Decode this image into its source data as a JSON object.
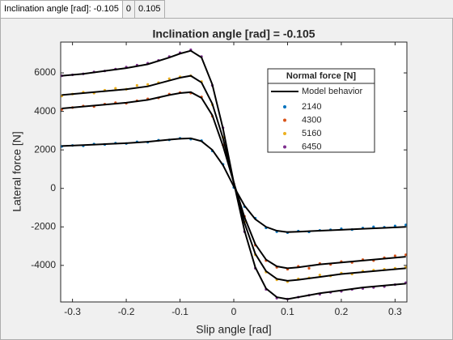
{
  "tabs": [
    "Inclination angle [rad]: -0.105",
    "0",
    "0.105"
  ],
  "chart_data": {
    "type": "scatter",
    "title": "Inclination angle [rad] = -0.105",
    "x_label": "Slip angle [rad]",
    "y_label": "Lateral force [N]",
    "legend_title": "Normal force [N]",
    "xlim": [
      -0.322,
      0.322
    ],
    "ylim": [
      -5900,
      7600
    ],
    "xticks": [
      -0.3,
      -0.2,
      -0.1,
      0,
      0.1,
      0.2,
      0.3
    ],
    "yticks": [
      -4000,
      -2000,
      0,
      2000,
      4000,
      6000
    ],
    "x": [
      -0.32,
      -0.3,
      -0.28,
      -0.26,
      -0.24,
      -0.22,
      -0.2,
      -0.18,
      -0.16,
      -0.14,
      -0.12,
      -0.1,
      -0.08,
      -0.06,
      -0.04,
      -0.02,
      0,
      0.02,
      0.04,
      0.06,
      0.08,
      0.1,
      0.12,
      0.14,
      0.16,
      0.18,
      0.2,
      0.22,
      0.24,
      0.26,
      0.28,
      0.3,
      0.32
    ],
    "series": [
      {
        "name": "2140",
        "color": "#0072BD",
        "values": [
          2180,
          2230,
          2210,
          2300,
          2280,
          2350,
          2330,
          2420,
          2400,
          2500,
          2520,
          2600,
          2560,
          2480,
          1950,
          1250,
          50,
          -950,
          -1550,
          -2050,
          -2250,
          -2300,
          -2220,
          -2260,
          -2180,
          -2150,
          -2100,
          -2140,
          -2060,
          -2000,
          -2020,
          -1950,
          -1900
        ]
      },
      {
        "name": "4300",
        "color": "#D95319",
        "values": [
          4100,
          4200,
          4280,
          4250,
          4380,
          4450,
          4420,
          4550,
          4650,
          4700,
          4900,
          4980,
          4950,
          4750,
          3750,
          2250,
          250,
          -1450,
          -2950,
          -3750,
          -4100,
          -4200,
          -4050,
          -4150,
          -3900,
          -3950,
          -3800,
          -3850,
          -3700,
          -3750,
          -3600,
          -3500,
          -3450
        ]
      },
      {
        "name": "5160",
        "color": "#EDB120",
        "values": [
          4800,
          4900,
          5000,
          4950,
          5100,
          5200,
          5150,
          5350,
          5400,
          5500,
          5700,
          5800,
          5850,
          5550,
          4350,
          2650,
          250,
          -1750,
          -3450,
          -4350,
          -4750,
          -4850,
          -4700,
          -4650,
          -4500,
          -4550,
          -4400,
          -4450,
          -4300,
          -4250,
          -4200,
          -4150,
          -4100
        ]
      },
      {
        "name": "6450",
        "color": "#7E2F8E",
        "values": [
          5850,
          5900,
          5950,
          6050,
          6100,
          6200,
          6300,
          6400,
          6500,
          6650,
          6850,
          7050,
          7200,
          6850,
          5350,
          3150,
          250,
          -2250,
          -4150,
          -5250,
          -5700,
          -5750,
          -5650,
          -5550,
          -5500,
          -5400,
          -5350,
          -5250,
          -5200,
          -5150,
          -5100,
          -5000,
          -4900
        ]
      }
    ],
    "model": {
      "name": "Model behavior",
      "color": "#000000",
      "x": [
        -0.32,
        -0.28,
        -0.24,
        -0.2,
        -0.16,
        -0.12,
        -0.1,
        -0.08,
        -0.06,
        -0.04,
        -0.02,
        0,
        0.02,
        0.04,
        0.06,
        0.08,
        0.1,
        0.12,
        0.16,
        0.2,
        0.24,
        0.28,
        0.32
      ],
      "curves": [
        [
          2200,
          2250,
          2300,
          2350,
          2420,
          2530,
          2580,
          2600,
          2450,
          2000,
          1200,
          100,
          -900,
          -1600,
          -2000,
          -2200,
          -2270,
          -2250,
          -2200,
          -2150,
          -2100,
          -2050,
          -2000
        ],
        [
          4150,
          4250,
          4350,
          4450,
          4600,
          4850,
          4950,
          5000,
          4700,
          3800,
          2200,
          300,
          -1500,
          -2900,
          -3700,
          -4050,
          -4150,
          -4100,
          -3950,
          -3850,
          -3750,
          -3650,
          -3550
        ],
        [
          4850,
          4950,
          5050,
          5150,
          5300,
          5600,
          5750,
          5850,
          5500,
          4400,
          2600,
          300,
          -1800,
          -3400,
          -4300,
          -4700,
          -4800,
          -4750,
          -4600,
          -4450,
          -4350,
          -4250,
          -4150
        ],
        [
          5850,
          5950,
          6100,
          6250,
          6450,
          6800,
          7000,
          7150,
          6800,
          5400,
          3100,
          300,
          -2200,
          -4100,
          -5200,
          -5650,
          -5750,
          -5650,
          -5450,
          -5300,
          -5150,
          -5050,
          -4950
        ]
      ]
    }
  }
}
